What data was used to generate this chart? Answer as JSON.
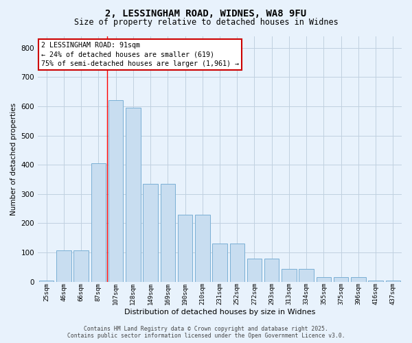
{
  "title_line1": "2, LESSINGHAM ROAD, WIDNES, WA8 9FU",
  "title_line2": "Size of property relative to detached houses in Widnes",
  "xlabel": "Distribution of detached houses by size in Widnes",
  "ylabel": "Number of detached properties",
  "categories": [
    "25sqm",
    "46sqm",
    "66sqm",
    "87sqm",
    "107sqm",
    "128sqm",
    "149sqm",
    "169sqm",
    "190sqm",
    "210sqm",
    "231sqm",
    "252sqm",
    "272sqm",
    "293sqm",
    "313sqm",
    "334sqm",
    "355sqm",
    "375sqm",
    "396sqm",
    "416sqm",
    "437sqm"
  ],
  "values": [
    5,
    108,
    108,
    405,
    620,
    595,
    335,
    335,
    230,
    230,
    130,
    130,
    80,
    80,
    45,
    45,
    17,
    15,
    15,
    5,
    5
  ],
  "bar_color": "#c8ddf0",
  "bar_edge_color": "#7aafd4",
  "grid_color": "#c0d0e0",
  "background_color": "#e8f2fc",
  "red_line_x": 3.5,
  "annotation_text": "2 LESSINGHAM ROAD: 91sqm\n← 24% of detached houses are smaller (619)\n75% of semi-detached houses are larger (1,961) →",
  "annotation_box_facecolor": "#ffffff",
  "annotation_border_color": "#cc0000",
  "footer_text": "Contains HM Land Registry data © Crown copyright and database right 2025.\nContains public sector information licensed under the Open Government Licence v3.0.",
  "ylim": [
    0,
    840
  ],
  "yticks": [
    0,
    100,
    200,
    300,
    400,
    500,
    600,
    700,
    800
  ]
}
